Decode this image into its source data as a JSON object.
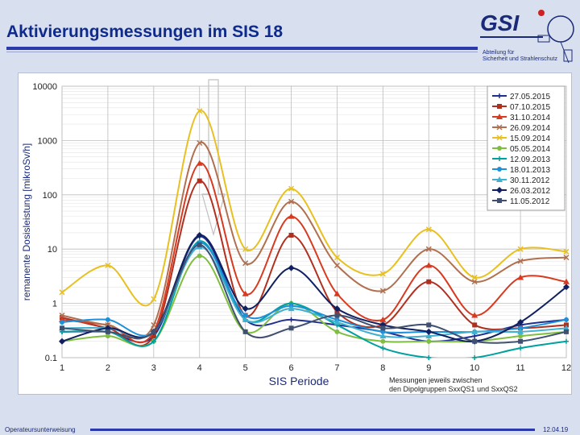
{
  "slide": {
    "title": "Aktivierungsmessungen im SIS 18",
    "logo_text": "GSI",
    "department_line1": "Abteilung für",
    "department_line2": "Sicherheit und Strahlenschutz",
    "footer_left": "Operateursunterweisung",
    "footer_right": "12.04.19"
  },
  "colors": {
    "title": "#0e2a8c",
    "rule": "#2a3aa8",
    "background": "#d8dfee"
  },
  "chart_data": {
    "type": "line",
    "title": "",
    "xlabel": "SIS Periode",
    "ylabel": "remanente Dosisleistung [mikroSv/h]",
    "yscale": "log",
    "ylim": [
      0.1,
      10000
    ],
    "xlim": [
      1,
      12
    ],
    "x_ticks": [
      "1",
      "2",
      "3",
      "4",
      "5",
      "6",
      "7",
      "8",
      "9",
      "10",
      "11",
      "12"
    ],
    "y_ticks": [
      "0.1",
      "1",
      "10",
      "100",
      "1000",
      "10000"
    ],
    "annotation": "Messungen jeweils zwischen den Dipolgruppen SxxQS1 und SxxQS2",
    "x": [
      1,
      2,
      3,
      4,
      5,
      6,
      7,
      8,
      9,
      10,
      11,
      12
    ],
    "series": [
      {
        "name": "27.05.2015",
        "color": "#1f2f8f",
        "marker": "plus",
        "values": [
          0.3,
          0.3,
          0.25,
          17,
          0.5,
          0.5,
          0.4,
          0.3,
          0.2,
          0.25,
          0.4,
          0.5
        ]
      },
      {
        "name": "07.10.2015",
        "color": "#b03020",
        "marker": "square",
        "values": [
          0.55,
          0.35,
          0.25,
          180,
          0.6,
          18,
          0.7,
          0.4,
          2.5,
          0.4,
          0.35,
          0.4
        ]
      },
      {
        "name": "31.10.2014",
        "color": "#d83a20",
        "marker": "triangle",
        "values": [
          0.5,
          0.4,
          0.3,
          380,
          1.5,
          40,
          1.5,
          0.5,
          5,
          0.6,
          3,
          2.5
        ]
      },
      {
        "name": "26.09.2014",
        "color": "#b07050",
        "marker": "x",
        "values": [
          0.6,
          0.4,
          0.4,
          900,
          5.5,
          75,
          5,
          1.7,
          10,
          2.5,
          6,
          7
        ]
      },
      {
        "name": "15.09.2014",
        "color": "#e8c020",
        "marker": "x",
        "values": [
          1.6,
          5,
          1.2,
          3500,
          10,
          130,
          7,
          3.5,
          23,
          3,
          10,
          9
        ]
      },
      {
        "name": "05.05.2014",
        "color": "#7fbf3f",
        "marker": "circle",
        "values": [
          0.2,
          0.25,
          0.2,
          7.5,
          0.3,
          1,
          0.3,
          0.2,
          0.2,
          0.2,
          0.25,
          0.3
        ]
      },
      {
        "name": "12.09.2013",
        "color": "#00a0a0",
        "marker": "plus",
        "values": [
          0.3,
          0.3,
          0.2,
          14,
          0.5,
          1,
          0.4,
          0.15,
          0.1,
          0.1,
          0.15,
          0.2
        ]
      },
      {
        "name": "18.01.2013",
        "color": "#1e90d8",
        "marker": "circle",
        "values": [
          0.45,
          0.5,
          0.3,
          13,
          0.6,
          0.9,
          0.5,
          0.3,
          0.3,
          0.3,
          0.35,
          0.5
        ]
      },
      {
        "name": "30.11.2012",
        "color": "#40b0d0",
        "marker": "triangle",
        "values": [
          0.35,
          0.35,
          0.3,
          11,
          0.5,
          0.8,
          0.45,
          0.25,
          0.25,
          0.3,
          0.3,
          0.35
        ]
      },
      {
        "name": "26.03.2012",
        "color": "#102060",
        "marker": "diamond",
        "values": [
          0.2,
          0.35,
          0.3,
          18,
          0.8,
          4.5,
          0.8,
          0.4,
          0.3,
          0.2,
          0.45,
          2
        ]
      },
      {
        "name": "11.05.2012",
        "color": "#405070",
        "marker": "square",
        "values": [
          0.35,
          0.3,
          0.3,
          12,
          0.3,
          0.35,
          0.6,
          0.35,
          0.4,
          0.2,
          0.2,
          0.3
        ]
      }
    ]
  }
}
